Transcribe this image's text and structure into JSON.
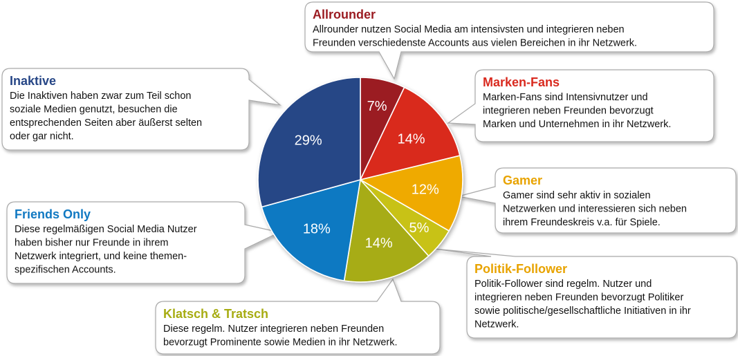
{
  "chart_data": {
    "type": "pie",
    "title": "",
    "start_angle_deg": 0,
    "direction": "clockwise",
    "slices": [
      {
        "name": "Allrounder",
        "value": 7,
        "label": "7%",
        "color": "#9b1c22",
        "label_color": "#ffffff",
        "text": [
          "Allrounder nutzen Social Media am intensivsten und integrieren neben",
          "Freunden verschiedenste Accounts aus vielen Bereichen in ihr Netzwerk."
        ]
      },
      {
        "name": "Marken-Fans",
        "value": 14,
        "label": "14%",
        "color": "#d92a1f",
        "label_color": "#ffffff",
        "text": [
          "Marken-Fans sind Intensivnutzer und",
          "integrieren neben Freunden bevorzugt",
          "Marken und Unternehmen in ihr Netzwerk."
        ]
      },
      {
        "name": "Gamer",
        "value": 12,
        "label": "12%",
        "color": "#efaa00",
        "label_color": "#ffffff",
        "text": [
          "Gamer sind sehr aktiv in sozialen",
          "Netzwerken und interessieren sich neben",
          "ihrem Freundeskreis v.a. für Spiele."
        ]
      },
      {
        "name": "Politik-Follower",
        "value": 5,
        "label": "5%",
        "color": "#c8c214",
        "label_color": "#ffffff",
        "text": [
          "Politik-Follower sind regelm. Nutzer und",
          "integrieren neben Freunden bevorzugt Politiker",
          "sowie politische/gesellschaftliche Initiativen in ihr",
          "Netzwerk."
        ]
      },
      {
        "name": "Klatsch & Tratsch",
        "value": 14,
        "label": "14%",
        "color": "#a7ac12",
        "label_color": "#ffffff",
        "text": [
          "Diese regelm. Nutzer integrieren neben Freunden",
          "bevorzugt Prominente sowie Medien in ihr Netzwerk."
        ]
      },
      {
        "name": "Friends Only",
        "value": 18,
        "label": "18%",
        "color": "#1179c2",
        "label_color": "#ffffff",
        "text": [
          "Diese regelmäßigen Social Media Nutzer",
          "haben bisher nur Freunde in ihrem",
          "Netzwerk integriert, und keine themen-",
          "spezifischen Accounts."
        ]
      },
      {
        "name": "Inaktive",
        "value": 29,
        "label": "29%",
        "color": "#264686",
        "label_color": "#ffffff",
        "text": [
          "Die Inaktiven haben zwar zum Teil schon",
          "soziale Medien genutzt, besuchen die",
          "entsprechenden Seiten aber äußerst selten",
          "oder gar nicht."
        ]
      }
    ],
    "callout_title_colors": {
      "Allrounder": "#9b1c22",
      "Marken-Fans": "#d92a1f",
      "Gamer": "#e8a300",
      "Politik-Follower": "#e8a300",
      "Klatsch & Tratsch": "#a7ac12",
      "Friends Only": "#1179c2",
      "Inaktive": "#264686"
    }
  }
}
